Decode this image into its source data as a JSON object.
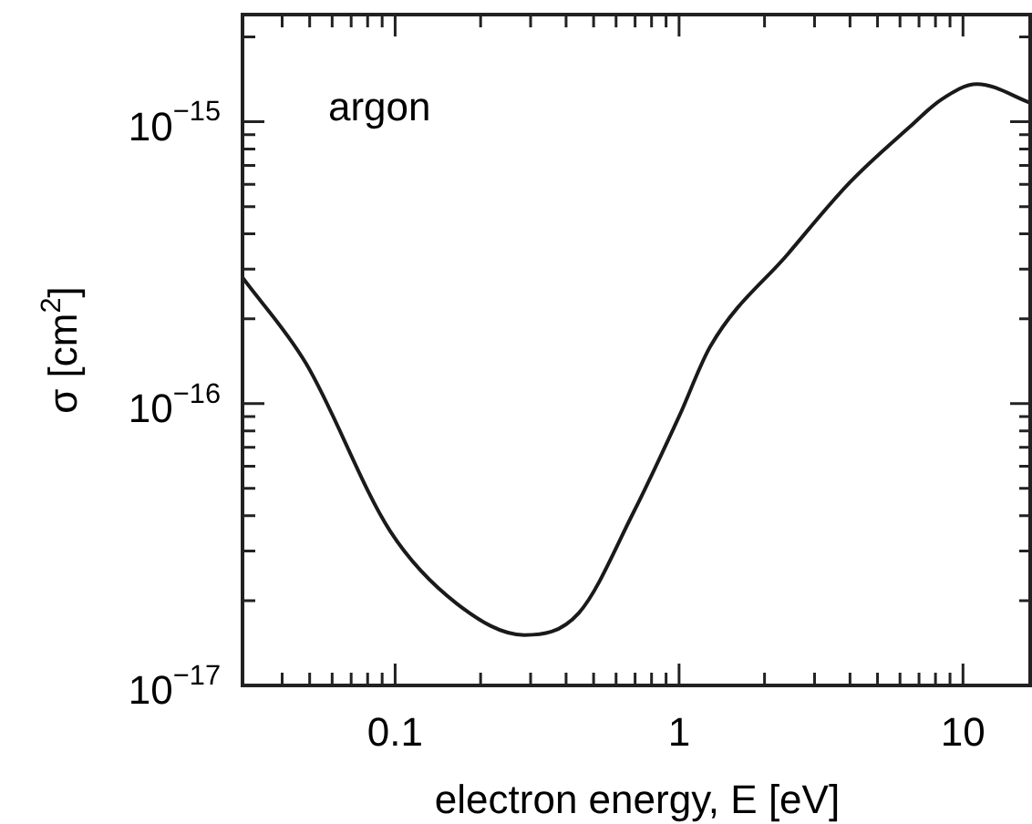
{
  "chart_data": {
    "type": "line",
    "xlabel": "electron energy, E [eV]",
    "ylabel": "σ [cm$^{2}$]",
    "annotations": [
      "argon"
    ],
    "log": "xy",
    "grid": false,
    "legend": false,
    "marker": "none",
    "line_style": "solid",
    "x": [
      0.029,
      0.0485,
      0.096,
      0.165,
      0.285,
      0.444,
      0.69,
      1,
      1.29,
      2.42,
      4.0,
      6.5,
      8.4,
      11.2,
      17.5
    ],
    "series": [
      {
        "color": "#1a1a1a",
        "values": [
          2.8e-16,
          1.39e-16,
          3.53e-17,
          1.95e-17,
          1.51e-17,
          1.81e-17,
          4.1e-17,
          9e-17,
          1.6e-16,
          3.4e-16,
          6.1e-16,
          9.6e-16,
          1.2e-15,
          1.36e-15,
          1.16e-15
        ]
      }
    ],
    "xlim": [
      0.029,
      17.5
    ],
    "ylim": [
      1e-17,
      2.4e-15
    ],
    "xticks": [
      {
        "value": 0.04,
        "label": null
      },
      {
        "value": 0.05,
        "label": null
      },
      {
        "value": 0.06,
        "label": null
      },
      {
        "value": 0.07,
        "label": null
      },
      {
        "value": 0.08,
        "label": null
      },
      {
        "value": 0.09,
        "label": null
      },
      0.1,
      {
        "value": 0.2,
        "label": null
      },
      {
        "value": 0.3,
        "label": null
      },
      {
        "value": 0.4,
        "label": null
      },
      {
        "value": 0.5,
        "label": null
      },
      {
        "value": 0.6,
        "label": null
      },
      {
        "value": 0.7,
        "label": null
      },
      {
        "value": 0.8,
        "label": null
      },
      {
        "value": 0.9,
        "label": null
      },
      1,
      {
        "value": 2,
        "label": null
      },
      {
        "value": 3,
        "label": null
      },
      {
        "value": 4,
        "label": null
      },
      {
        "value": 5,
        "label": null
      },
      {
        "value": 6,
        "label": null
      },
      {
        "value": 7,
        "label": null
      },
      {
        "value": 8,
        "label": null
      },
      {
        "value": 9,
        "label": null
      },
      10
    ],
    "yticks": [
      {
        "value": 1e-17,
        "label": "10$^{−17}$"
      },
      {
        "value": 2e-17,
        "label": null
      },
      {
        "value": 3e-17,
        "label": null
      },
      {
        "value": 4e-17,
        "label": null
      },
      {
        "value": 5e-17,
        "label": null
      },
      {
        "value": 6e-17,
        "label": null
      },
      {
        "value": 7e-17,
        "label": null
      },
      {
        "value": 8e-17,
        "label": null
      },
      {
        "value": 9e-17,
        "label": null
      },
      {
        "value": 1e-16,
        "label": "10$^{−16}$"
      },
      {
        "value": 2e-16,
        "label": null
      },
      {
        "value": 3e-16,
        "label": null
      },
      {
        "value": 4e-16,
        "label": null
      },
      {
        "value": 5e-16,
        "label": null
      },
      {
        "value": 6e-16,
        "label": null
      },
      {
        "value": 7e-16,
        "label": null
      },
      {
        "value": 8e-16,
        "label": null
      },
      {
        "value": 9e-16,
        "label": null
      },
      {
        "value": 1e-15,
        "label": "10$^{−15}$"
      },
      {
        "value": 2e-15,
        "label": null
      }
    ]
  }
}
